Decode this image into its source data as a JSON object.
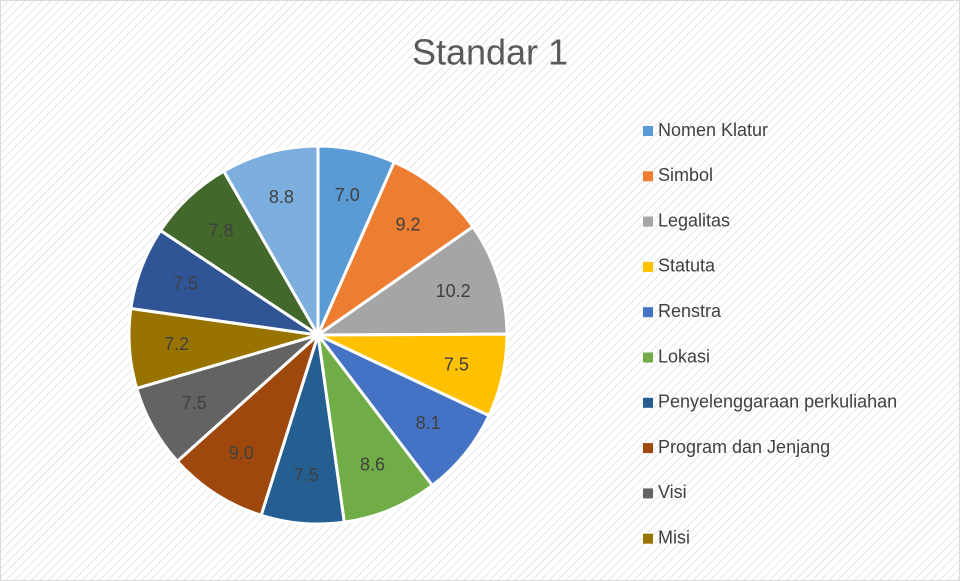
{
  "chart_data": {
    "type": "pie",
    "title": "Standar 1",
    "categories": [
      "Nomen Klatur",
      "Simbol",
      "Legalitas",
      "Statuta",
      "Renstra",
      "Lokasi",
      "Penyelenggaraan perkuliahan",
      "Program dan Jenjang",
      "Visi",
      "Misi",
      null,
      null,
      null
    ],
    "values": [
      7.0,
      9.2,
      10.2,
      7.5,
      8.1,
      8.6,
      7.5,
      9.0,
      7.5,
      7.2,
      7.5,
      7.8,
      8.8
    ],
    "value_labels": [
      "7.0",
      "9.2",
      "10.2",
      "7.5",
      "8.1",
      "8.6",
      "7.5",
      "9.0",
      "7.5",
      "7.2",
      "7.5",
      "7.8",
      "8.8"
    ],
    "colors": [
      "#5b9bd5",
      "#ed7d31",
      "#a5a5a5",
      "#ffc000",
      "#4472c4",
      "#70ad47",
      "#255e91",
      "#9e480e",
      "#636363",
      "#997300",
      "#2f5597",
      "#43682b",
      "#7cafdd"
    ],
    "legend": "right"
  }
}
